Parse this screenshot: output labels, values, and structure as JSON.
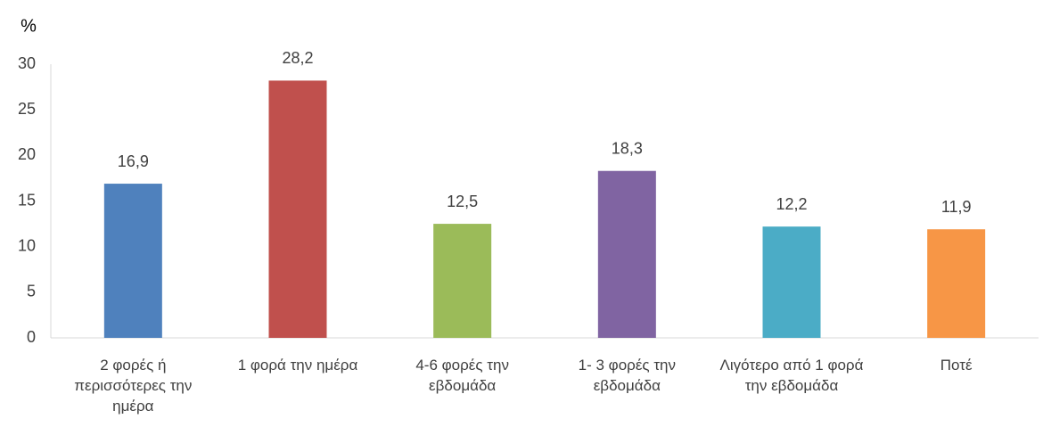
{
  "chart_data": {
    "type": "bar",
    "y_label": "%",
    "categories": [
      "2 φορές ή περισσότερες την ημέρα",
      "1 φορά την ημέρα",
      "4-6 φορές την εβδομάδα",
      "1- 3 φορές την εβδομάδα",
      "Λιγότερο από 1 φορά την εβδομάδα",
      "Ποτέ"
    ],
    "values": [
      16.9,
      28.2,
      12.5,
      18.3,
      12.2,
      11.9
    ],
    "value_labels": [
      "16,9",
      "28,2",
      "12,5",
      "18,3",
      "12,2",
      "11,9"
    ],
    "colors": [
      "#4f81bd",
      "#c0504d",
      "#9bbb59",
      "#8064a2",
      "#4bacc6",
      "#f79646"
    ],
    "ylim": [
      0,
      30
    ],
    "yticks": [
      0,
      5,
      10,
      15,
      20,
      25,
      30
    ],
    "grid": false
  }
}
